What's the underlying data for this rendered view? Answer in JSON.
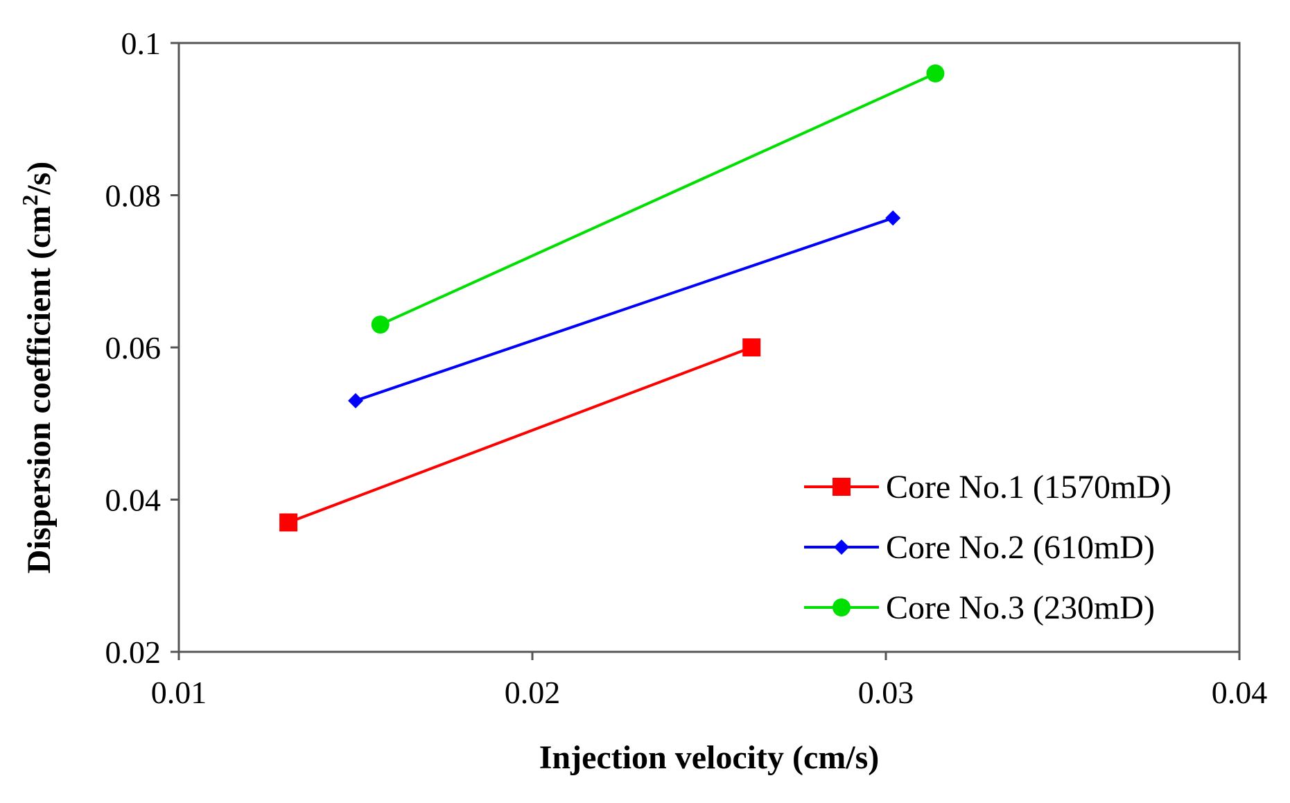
{
  "chart_data": {
    "type": "line",
    "title": "",
    "xlabel": "Injection  velocity (cm/s)",
    "ylabel": "Dispersion coefficient (cm",
    "ylabel_sup": "2",
    "ylabel_tail": "/s)",
    "xlim": [
      0.01,
      0.04
    ],
    "ylim": [
      0.02,
      0.1
    ],
    "xticks": [
      0.01,
      0.02,
      0.03,
      0.04
    ],
    "xtick_labels": [
      "0.01",
      "0.02",
      "0.03",
      "0.04"
    ],
    "yticks": [
      0.02,
      0.04,
      0.06,
      0.08,
      0.1
    ],
    "ytick_labels": [
      "0.02",
      "0.04",
      "0.06",
      "0.08",
      "0.1"
    ],
    "grid": false,
    "legend_position": "bottom-right",
    "series": [
      {
        "name": "Core No.1 (1570mD)",
        "color": "#ff0000",
        "marker": "square",
        "x": [
          0.0131,
          0.0262
        ],
        "y": [
          0.037,
          0.06
        ]
      },
      {
        "name": "Core No.2 (610mD)",
        "color": "#0000ff",
        "marker": "diamond",
        "x": [
          0.015,
          0.0302
        ],
        "y": [
          0.053,
          0.077
        ]
      },
      {
        "name": "Core No.3 (230mD)",
        "color": "#00e000",
        "marker": "circle",
        "x": [
          0.0157,
          0.0314
        ],
        "y": [
          0.063,
          0.096
        ]
      }
    ]
  }
}
